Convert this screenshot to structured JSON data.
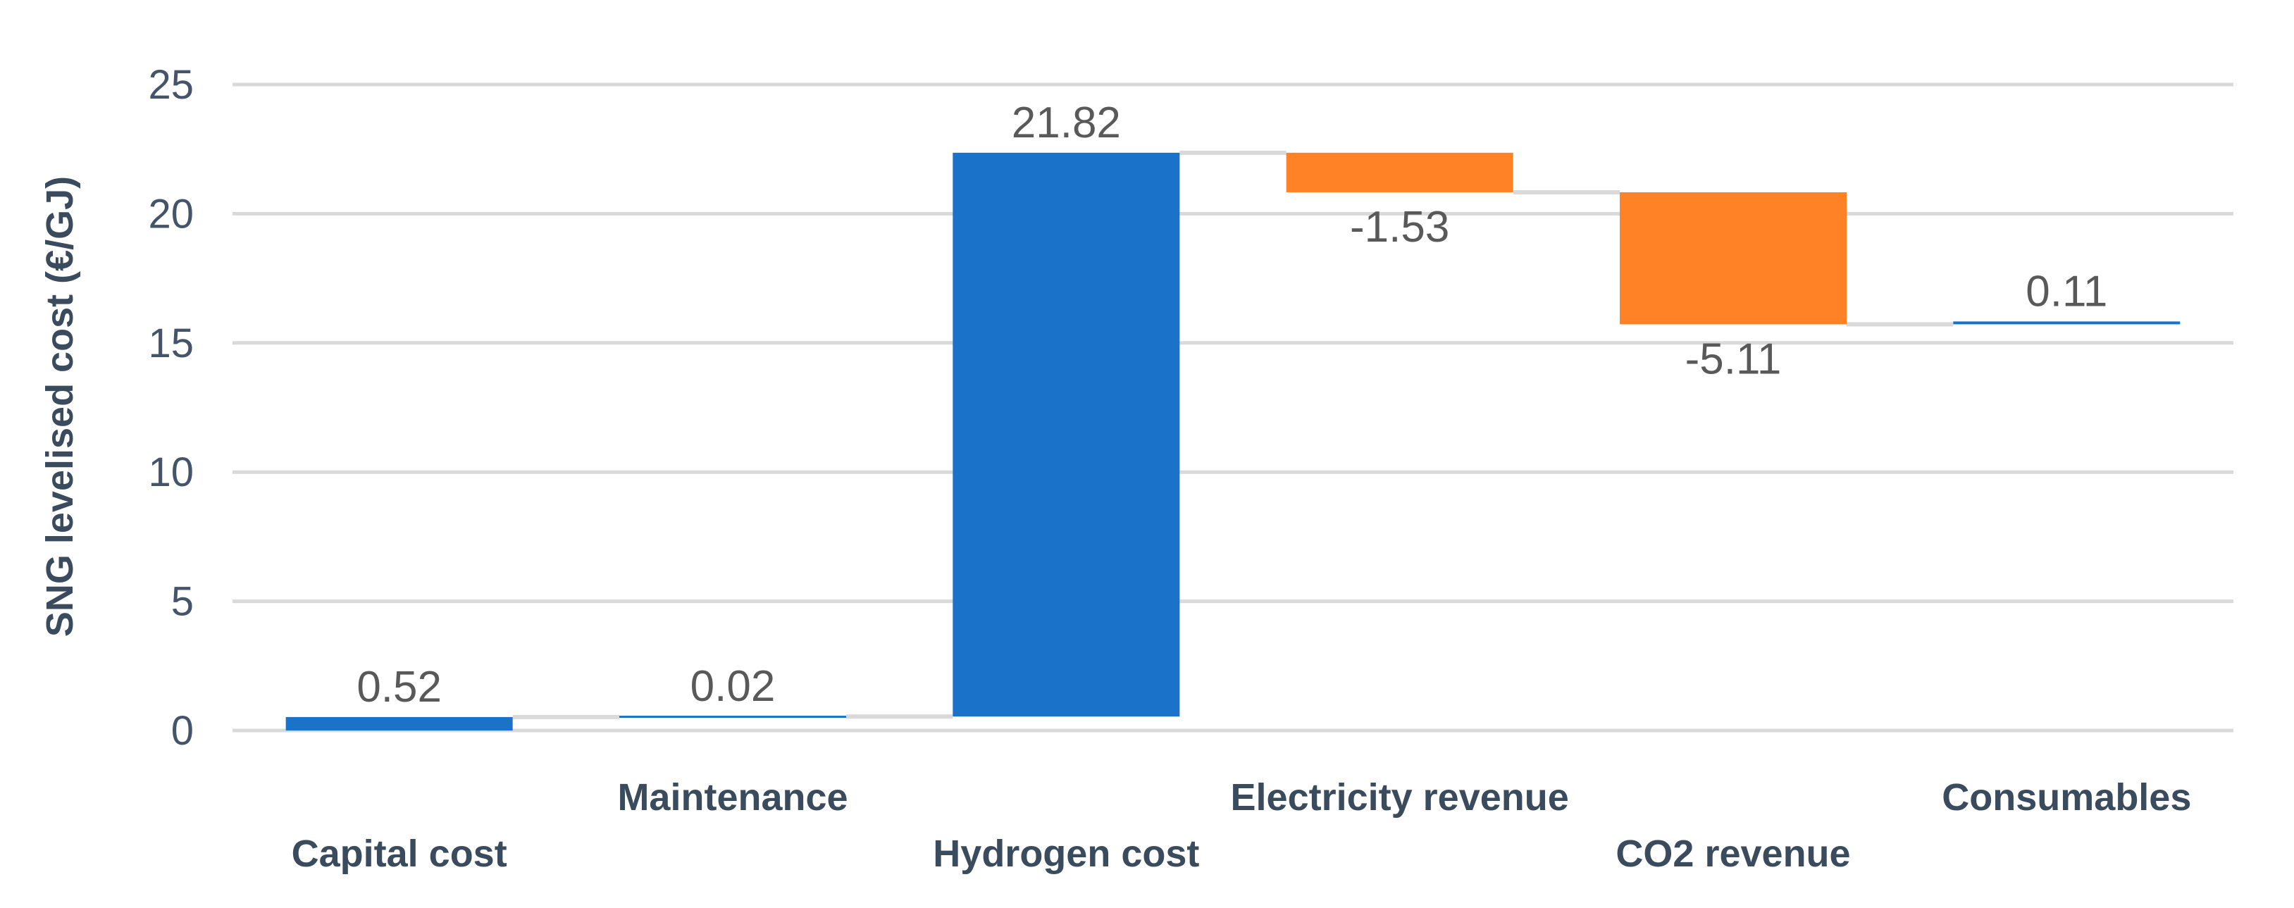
{
  "chart_data": {
    "type": "waterfall",
    "title": "",
    "xlabel": "",
    "ylabel": "SNG levelised cost (€/GJ)",
    "ylim": [
      0,
      25
    ],
    "yticks": [
      0,
      5,
      10,
      15,
      20,
      25
    ],
    "grid": true,
    "legend": "none",
    "categories": [
      "Capital cost",
      "Maintenance",
      "Hydrogen cost",
      "Electricity  revenue",
      "CO2 revenue",
      "Consumables"
    ],
    "values": [
      0.52,
      0.02,
      21.82,
      -1.53,
      -5.11,
      0.11
    ],
    "labels": [
      "0.52",
      "0.02",
      "21.82",
      "-1.53",
      "-5.11",
      "0.11"
    ],
    "colors": {
      "increase": "#1A73C8",
      "decrease": "#FF8227"
    }
  }
}
